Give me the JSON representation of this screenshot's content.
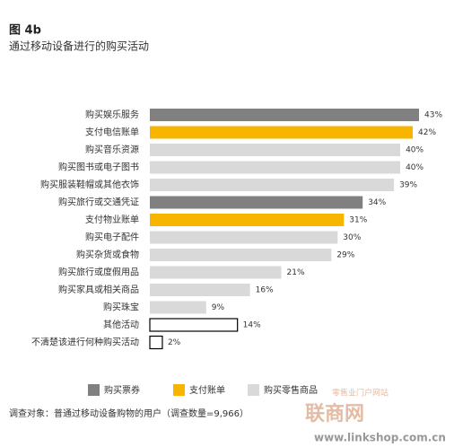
{
  "chart_data": {
    "type": "bar",
    "orientation": "horizontal",
    "title": "图 4b",
    "subtitle": "通过移动设备进行的购买活动",
    "categories": [
      "购买娱乐服务",
      "支付电信账单",
      "购买音乐资源",
      "购买图书或电子图书",
      "购买服装鞋帽或其他衣饰",
      "购买旅行或交通凭证",
      "支付物业账单",
      "购买电子配件",
      "购买杂货或食物",
      "购买旅行或度假用品",
      "购买家具或相关商品",
      "购买珠宝",
      "其他活动",
      "不清楚该进行何种购买活动"
    ],
    "values": [
      43,
      42,
      40,
      40,
      39,
      34,
      31,
      30,
      29,
      21,
      16,
      9,
      14,
      2
    ],
    "value_labels": [
      "43%",
      "42%",
      "40%",
      "40%",
      "39%",
      "34%",
      "31%",
      "30%",
      "29%",
      "21%",
      "16%",
      "9%",
      "14%",
      "2%"
    ],
    "colors": [
      "#808080",
      "#f7b500",
      "#d9d9d9",
      "#d9d9d9",
      "#d9d9d9",
      "#808080",
      "#f7b500",
      "#d9d9d9",
      "#d9d9d9",
      "#d9d9d9",
      "#d9d9d9",
      "#d9d9d9",
      "#ffffff",
      "#ffffff"
    ],
    "legend": [
      {
        "name": "购买票券",
        "color": "#808080"
      },
      {
        "name": "支付账单",
        "color": "#f7b500"
      },
      {
        "name": "购买零售商品",
        "color": "#d9d9d9"
      }
    ],
    "footnote": "调查对象：普通过移动设备购物的用户（调查数量=9,966）",
    "watermark": [
      "零售业门户网站",
      "联商网",
      "www.linkshop.com.cn"
    ]
  }
}
